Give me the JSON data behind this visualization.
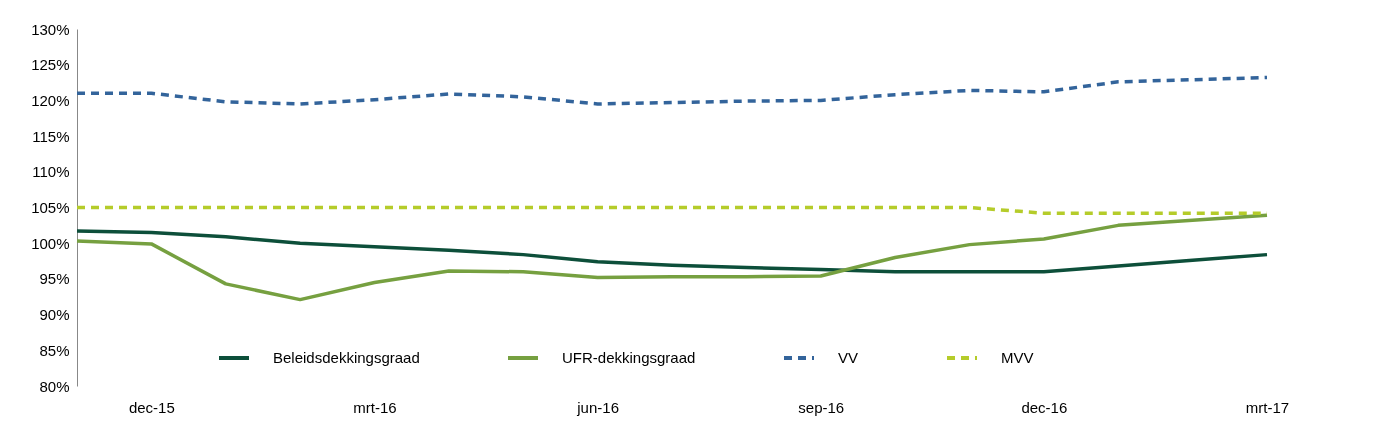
{
  "chart_data": {
    "type": "line",
    "categories": [
      null,
      "dec-15",
      null,
      null,
      "mrt-16",
      null,
      null,
      "jun-16",
      null,
      null,
      "sep-16",
      null,
      null,
      "dec-16",
      null,
      null,
      "mrt-17"
    ],
    "ylim": [
      80,
      130
    ],
    "yticks": [
      {
        "value": 80,
        "label": "80%"
      },
      {
        "value": 85,
        "label": "85%"
      },
      {
        "value": 90,
        "label": "90%"
      },
      {
        "value": 95,
        "label": "95%"
      },
      {
        "value": 100,
        "label": "100%"
      },
      {
        "value": 105,
        "label": "105%"
      },
      {
        "value": 110,
        "label": "110%"
      },
      {
        "value": 115,
        "label": "115%"
      },
      {
        "value": 120,
        "label": "120%"
      },
      {
        "value": 125,
        "label": "125%"
      },
      {
        "value": 130,
        "label": "130%"
      }
    ],
    "grid": false,
    "legend": "bottom",
    "marker": "none",
    "series": [
      {
        "name": "Beleidsdekkingsgraad",
        "color": "#0d4f3a",
        "line_style": "solid",
        "values": [
          101.7,
          101.5,
          100.9,
          100,
          99.5,
          99,
          98.4,
          97.4,
          96.9,
          96.6,
          96.3,
          96,
          96,
          96,
          96.8,
          97.6,
          98.4
        ]
      },
      {
        "name": "UFR-dekkingsgraad",
        "color": "#76a040",
        "line_style": "solid",
        "values": [
          100.3,
          99.9,
          94.3,
          92.1,
          94.5,
          96.1,
          96,
          95.2,
          95.3,
          95.3,
          95.4,
          98,
          99.8,
          100.6,
          102.5,
          103.2,
          103.9
        ]
      },
      {
        "name": "VV",
        "color": "#33649b",
        "line_style": "dashed",
        "values": [
          121,
          121,
          119.8,
          119.5,
          120.1,
          120.9,
          120.5,
          119.5,
          119.7,
          119.9,
          120,
          120.8,
          121.4,
          121.2,
          122.6,
          122.9,
          123.2
        ]
      },
      {
        "name": "MVV",
        "color": "#b5cc2a",
        "line_style": "dashed",
        "values": [
          105,
          105,
          105,
          105,
          105,
          105,
          105,
          105,
          105,
          105,
          105,
          105,
          105,
          104.2,
          104.2,
          104.2,
          104.2
        ]
      }
    ]
  }
}
